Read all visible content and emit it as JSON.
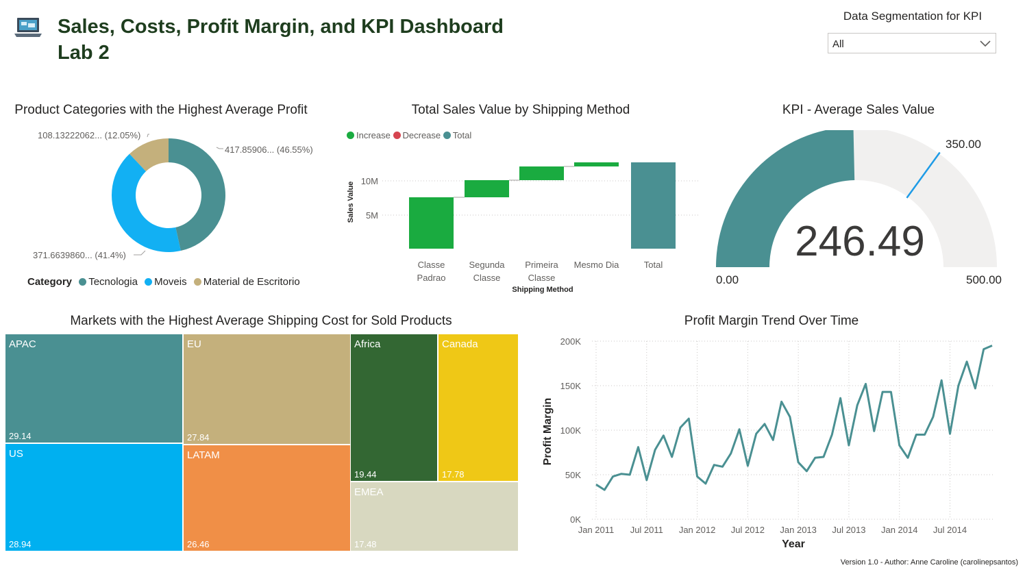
{
  "header": {
    "title_line1": "Sales, Costs, Profit Margin, and KPI Dashboard",
    "title_line2": "Lab 2",
    "logo_icon": "laptop-icon"
  },
  "slicer": {
    "title": "Data Segmentation for KPI",
    "selected": "All",
    "icon": "chevron-down-icon"
  },
  "donut": {
    "title": "Product Categories with the Highest Average Profit",
    "legend_title": "Category",
    "labels": {
      "tecnologia": "417.85906... (46.55%)",
      "moveis": "371.6639860... (41.4%)",
      "material": "108.13222062... (12.05%)"
    },
    "legend": [
      "Tecnologia",
      "Moveis",
      "Material de Escritorio"
    ]
  },
  "waterfall": {
    "title": "Total Sales Value by Shipping Method",
    "legend": [
      "Increase",
      "Decrease",
      "Total"
    ],
    "ylabel": "Sales Value",
    "xlabel": "Shipping Method",
    "yticks": [
      "10M",
      "5M"
    ],
    "categories": [
      [
        "Classe",
        "Padrao"
      ],
      [
        "Segunda",
        "Classe"
      ],
      [
        "Primeira",
        "Classe"
      ],
      [
        "Mesmo Dia",
        ""
      ],
      [
        "Total",
        ""
      ]
    ]
  },
  "kpi": {
    "title": "KPI - Average Sales Value",
    "value": "246.49",
    "min": "0.00",
    "max": "500.00",
    "target": "350.00"
  },
  "treemap": {
    "title": "Markets with the Highest Average Shipping Cost for Sold Products",
    "tiles": [
      {
        "name": "APAC",
        "value": "29.14"
      },
      {
        "name": "EU",
        "value": "27.84"
      },
      {
        "name": "Africa",
        "value": "19.44"
      },
      {
        "name": "Canada",
        "value": "17.78"
      },
      {
        "name": "US",
        "value": "28.94"
      },
      {
        "name": "LATAM",
        "value": "26.46"
      },
      {
        "name": "EMEA",
        "value": "17.48"
      }
    ]
  },
  "trend": {
    "title": "Profit Margin Trend Over Time",
    "ylabel": "Profit Margin",
    "xlabel": "Year",
    "yticks": [
      "200K",
      "150K",
      "100K",
      "50K",
      "0K"
    ],
    "xticks": [
      "Jan 2011",
      "Jul 2011",
      "Jan 2012",
      "Jul 2012",
      "Jan 2013",
      "Jul 2013",
      "Jan 2014",
      "Jul 2014"
    ]
  },
  "footer": "Version 1.0 - Author: Anne Caroline (carolinepsantos)",
  "chart_data": [
    {
      "type": "pie",
      "title": "Product Categories with the Highest Average Profit",
      "categories": [
        "Tecnologia",
        "Moveis",
        "Material de Escritorio"
      ],
      "values": [
        417.85906,
        371.663986,
        108.13222062
      ],
      "percent": [
        46.55,
        41.4,
        12.05
      ],
      "colors": [
        "#4a9092",
        "#12b0f3",
        "#c4b07c"
      ]
    },
    {
      "type": "bar",
      "subtype": "waterfall",
      "title": "Total Sales Value by Shipping Method",
      "categories": [
        "Classe Padrao",
        "Segunda Classe",
        "Primeira Classe",
        "Mesmo Dia",
        "Total"
      ],
      "values": [
        7.5,
        2.5,
        2.0,
        0.6,
        12.6
      ],
      "unit": "M",
      "ylim": [
        0,
        14
      ],
      "colors": {
        "increase": "#1aab40",
        "decrease": "#d64550",
        "total": "#4a9092"
      }
    },
    {
      "type": "gauge",
      "title": "KPI - Average Sales Value",
      "value": 246.49,
      "min": 0,
      "max": 500,
      "target": 350,
      "colors": {
        "fill": "#4a9092",
        "track": "#f1f0ef",
        "target": "#1e9be6"
      }
    },
    {
      "type": "treemap",
      "title": "Markets with the Highest Average Shipping Cost for Sold Products",
      "categories": [
        "APAC",
        "EU",
        "Africa",
        "Canada",
        "US",
        "LATAM",
        "EMEA"
      ],
      "values": [
        29.14,
        27.84,
        19.44,
        17.78,
        28.94,
        26.46,
        17.48
      ],
      "colors": [
        "#4a9092",
        "#c4b07c",
        "#336733",
        "#efc816",
        "#00b0f0",
        "#f08f47",
        "#d8d8c0"
      ]
    },
    {
      "type": "line",
      "title": "Profit Margin Trend Over Time",
      "xlabel": "Year",
      "ylabel": "Profit Margin",
      "ylim": [
        0,
        200000
      ],
      "x": [
        "2011-01",
        "2011-02",
        "2011-03",
        "2011-04",
        "2011-05",
        "2011-06",
        "2011-07",
        "2011-08",
        "2011-09",
        "2011-10",
        "2011-11",
        "2011-12",
        "2012-01",
        "2012-02",
        "2012-03",
        "2012-04",
        "2012-05",
        "2012-06",
        "2012-07",
        "2012-08",
        "2012-09",
        "2012-10",
        "2012-11",
        "2012-12",
        "2013-01",
        "2013-02",
        "2013-03",
        "2013-04",
        "2013-05",
        "2013-06",
        "2013-07",
        "2013-08",
        "2013-09",
        "2013-10",
        "2013-11",
        "2013-12",
        "2014-01",
        "2014-02",
        "2014-03",
        "2014-04",
        "2014-05",
        "2014-06",
        "2014-07",
        "2014-08",
        "2014-09",
        "2014-10",
        "2014-11",
        "2014-12"
      ],
      "series": [
        {
          "values": [
            39000,
            33000,
            48000,
            51000,
            50000,
            81000,
            44000,
            78000,
            94000,
            70000,
            103000,
            113000,
            48000,
            40000,
            61000,
            59000,
            74000,
            101000,
            60000,
            96000,
            107000,
            89000,
            132000,
            115000,
            64000,
            54000,
            69000,
            70000,
            95000,
            136000,
            83000,
            128000,
            152000,
            99000,
            143000,
            143000,
            83000,
            69000,
            95000,
            95000,
            115000,
            156000,
            96000,
            150000,
            177000,
            147000,
            191000,
            195000
          ],
          "color": "#4a9092"
        }
      ]
    }
  ]
}
